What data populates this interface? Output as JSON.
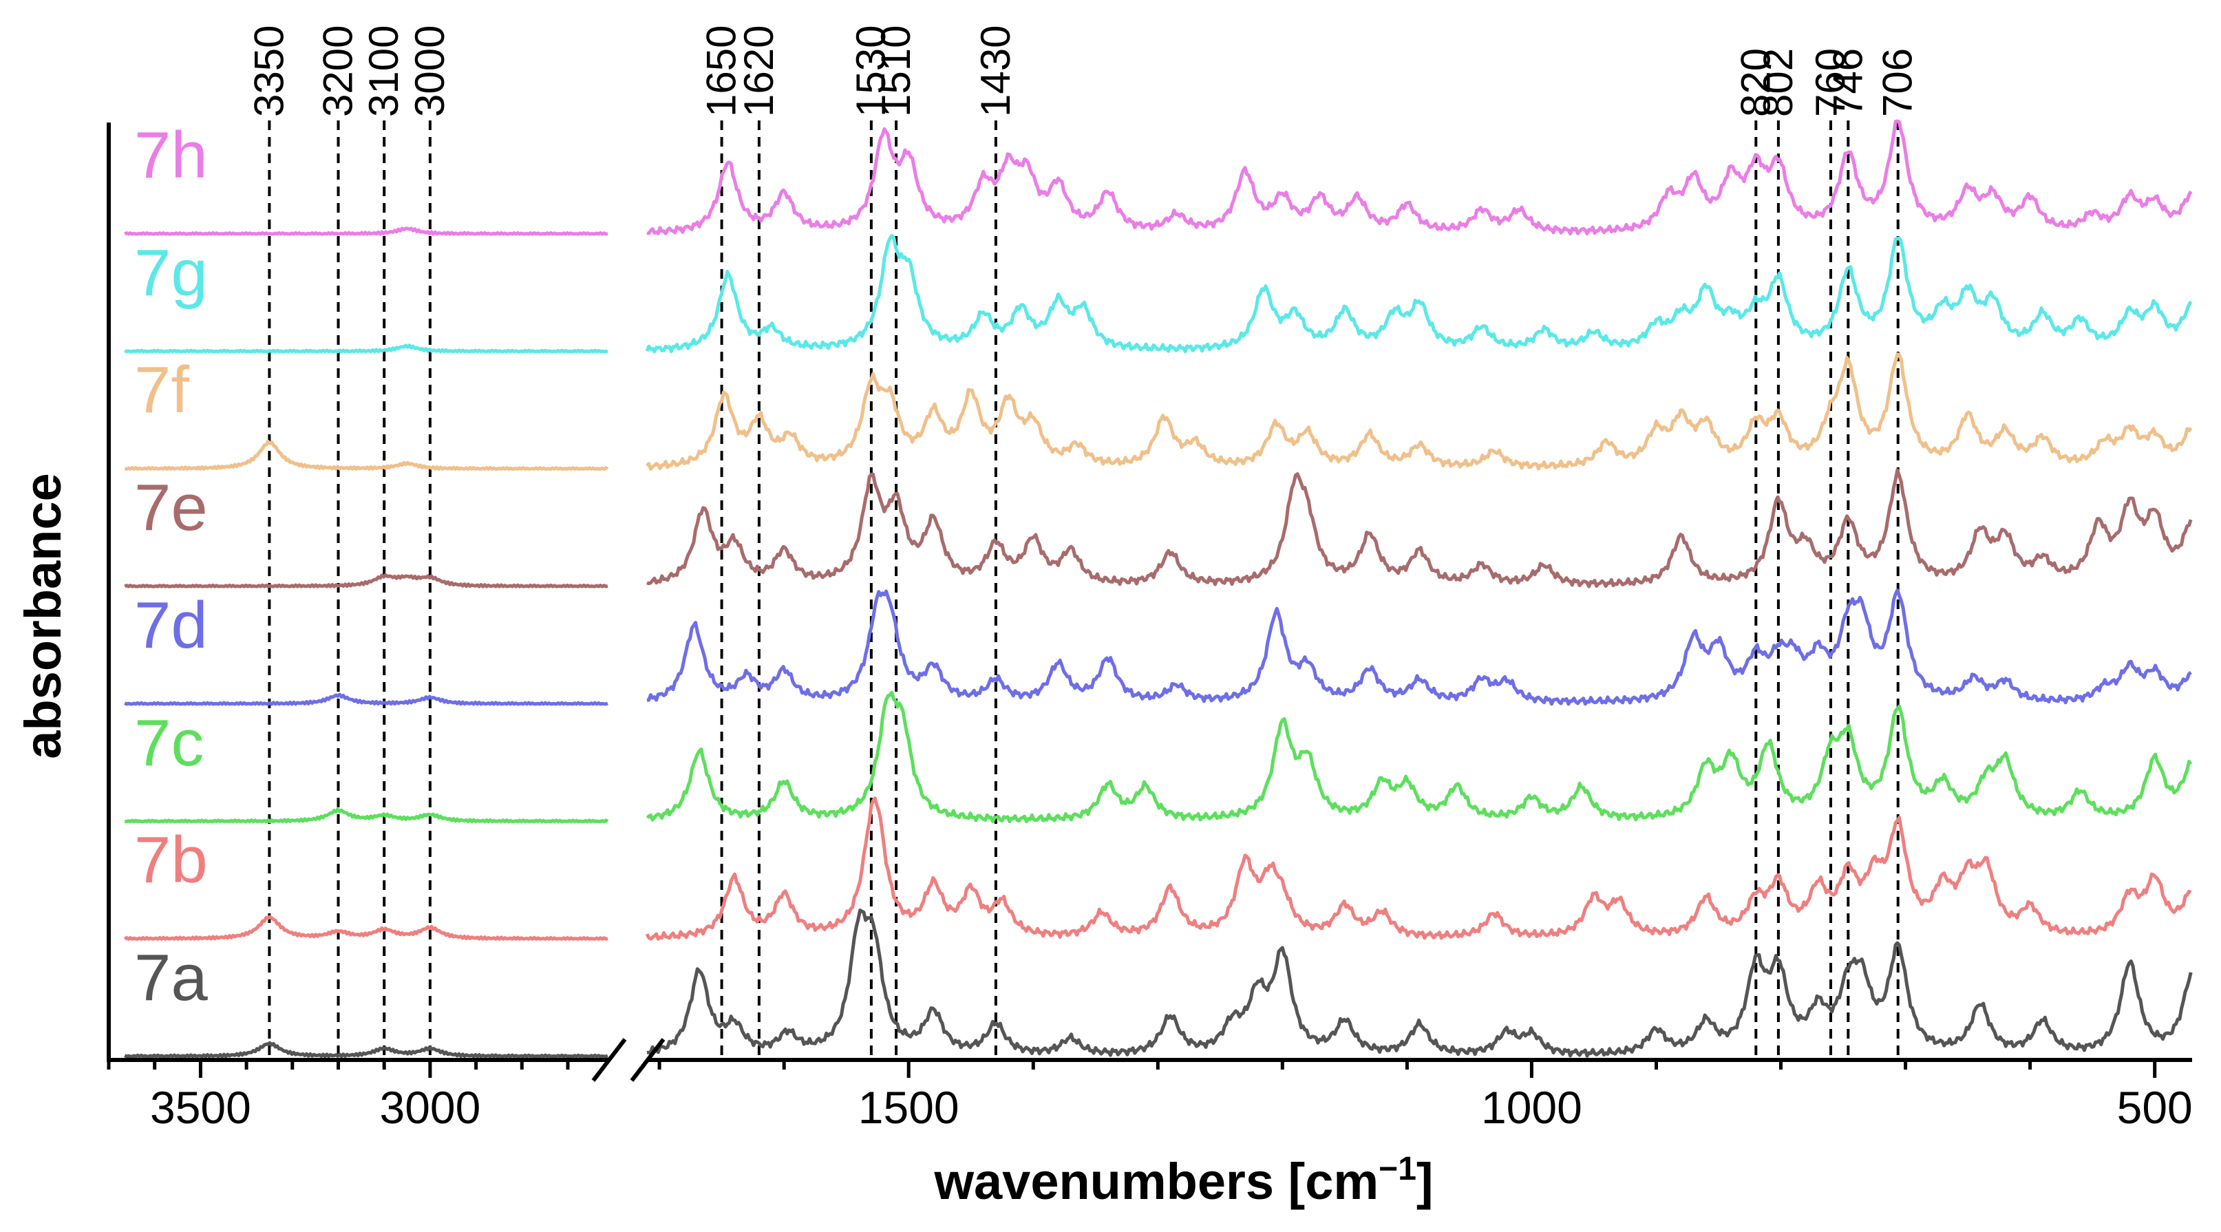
{
  "chart_data": {
    "type": "line",
    "title": "",
    "xlabel": "wavenumbers [cm",
    "xlabel_sup": "−1",
    "xlabel_close": "]",
    "ylabel": "absorbance",
    "x_direction": "descending",
    "axis_break": true,
    "x_segments": [
      {
        "range": [
          3700,
          2610
        ],
        "ticks": [
          3500,
          3000
        ],
        "tick_labels": [
          "3500",
          "3000"
        ]
      },
      {
        "range": [
          1710,
          470
        ],
        "ticks": [
          1500,
          1000,
          500
        ],
        "tick_labels": [
          "1500",
          "1000",
          "500"
        ]
      }
    ],
    "minor_tick_step": 100,
    "y_units": "arbitrary, stacked offset",
    "grid": false,
    "legend": "inline labels at left of each trace",
    "peak_markers": [
      {
        "label": "3350",
        "wavenumber": 3350
      },
      {
        "label": "3200",
        "wavenumber": 3200
      },
      {
        "label": "3100",
        "wavenumber": 3100
      },
      {
        "label": "3000",
        "wavenumber": 3000
      },
      {
        "label": "1650",
        "wavenumber": 1650
      },
      {
        "label": "1620",
        "wavenumber": 1620
      },
      {
        "label": "1530",
        "wavenumber": 1530
      },
      {
        "label": "1510",
        "wavenumber": 1510
      },
      {
        "label": "1430",
        "wavenumber": 1430
      },
      {
        "label": "820",
        "wavenumber": 820
      },
      {
        "label": "802",
        "wavenumber": 802
      },
      {
        "label": "760",
        "wavenumber": 760
      },
      {
        "label": "746",
        "wavenumber": 746
      },
      {
        "label": "706",
        "wavenumber": 706
      }
    ],
    "series": [
      {
        "name": "7a",
        "color": "#555555",
        "peaks": [
          [
            1668,
            0.78
          ],
          [
            1640,
            0.25
          ],
          [
            1597,
            0.18
          ],
          [
            1540,
            1.0
          ],
          [
            1528,
            0.85
          ],
          [
            1480,
            0.38
          ],
          [
            1430,
            0.28
          ],
          [
            1370,
            0.15
          ],
          [
            1290,
            0.35
          ],
          [
            1240,
            0.25
          ],
          [
            1220,
            0.5
          ],
          [
            1200,
            0.9
          ],
          [
            1150,
            0.3
          ],
          [
            1090,
            0.28
          ],
          [
            1020,
            0.2
          ],
          [
            1000,
            0.18
          ],
          [
            900,
            0.22
          ],
          [
            860,
            0.28
          ],
          [
            820,
            0.75
          ],
          [
            802,
            0.7
          ],
          [
            770,
            0.35
          ],
          [
            746,
            0.5
          ],
          [
            735,
            0.55
          ],
          [
            706,
            0.95
          ],
          [
            640,
            0.45
          ],
          [
            590,
            0.3
          ],
          [
            520,
            0.85
          ],
          [
            470,
            0.75
          ]
        ],
        "hf": [
          [
            3350,
            0.12
          ],
          [
            3100,
            0.07
          ],
          [
            3000,
            0.07
          ]
        ]
      },
      {
        "name": "7b",
        "color": "#ef7f7f",
        "peaks": [
          [
            1640,
            0.55
          ],
          [
            1600,
            0.38
          ],
          [
            1530,
            0.62
          ],
          [
            1525,
            0.75
          ],
          [
            1480,
            0.45
          ],
          [
            1450,
            0.4
          ],
          [
            1425,
            0.3
          ],
          [
            1345,
            0.22
          ],
          [
            1290,
            0.45
          ],
          [
            1230,
            0.65
          ],
          [
            1210,
            0.45
          ],
          [
            1200,
            0.25
          ],
          [
            1150,
            0.28
          ],
          [
            1120,
            0.22
          ],
          [
            1030,
            0.22
          ],
          [
            950,
            0.35
          ],
          [
            930,
            0.3
          ],
          [
            860,
            0.35
          ],
          [
            820,
            0.3
          ],
          [
            802,
            0.45
          ],
          [
            770,
            0.4
          ],
          [
            746,
            0.5
          ],
          [
            725,
            0.45
          ],
          [
            706,
            0.95
          ],
          [
            670,
            0.4
          ],
          [
            650,
            0.45
          ],
          [
            635,
            0.55
          ],
          [
            600,
            0.25
          ],
          [
            520,
            0.35
          ],
          [
            500,
            0.5
          ],
          [
            470,
            0.4
          ]
        ],
        "hf": [
          [
            3350,
            0.2
          ],
          [
            3200,
            0.06
          ],
          [
            3100,
            0.08
          ],
          [
            3000,
            0.1
          ]
        ]
      },
      {
        "name": "7c",
        "color": "#5ddf5d",
        "peaks": [
          [
            1668,
            0.65
          ],
          [
            1600,
            0.35
          ],
          [
            1517,
            0.92
          ],
          [
            1505,
            0.7
          ],
          [
            1340,
            0.32
          ],
          [
            1310,
            0.3
          ],
          [
            1200,
            0.85
          ],
          [
            1180,
            0.5
          ],
          [
            1120,
            0.32
          ],
          [
            1100,
            0.3
          ],
          [
            1060,
            0.3
          ],
          [
            1000,
            0.2
          ],
          [
            960,
            0.3
          ],
          [
            860,
            0.45
          ],
          [
            840,
            0.5
          ],
          [
            810,
            0.65
          ],
          [
            760,
            0.5
          ],
          [
            746,
            0.65
          ],
          [
            706,
            1.0
          ],
          [
            670,
            0.3
          ],
          [
            635,
            0.3
          ],
          [
            620,
            0.5
          ],
          [
            560,
            0.25
          ],
          [
            500,
            0.55
          ],
          [
            470,
            0.5
          ]
        ],
        "hf": [
          [
            3200,
            0.1
          ],
          [
            3100,
            0.05
          ],
          [
            3000,
            0.06
          ]
        ]
      },
      {
        "name": "7d",
        "color": "#6e6ee8",
        "peaks": [
          [
            1672,
            0.72
          ],
          [
            1630,
            0.22
          ],
          [
            1600,
            0.28
          ],
          [
            1525,
            0.7
          ],
          [
            1515,
            0.62
          ],
          [
            1480,
            0.3
          ],
          [
            1430,
            0.2
          ],
          [
            1380,
            0.35
          ],
          [
            1340,
            0.4
          ],
          [
            1285,
            0.15
          ],
          [
            1205,
            0.82
          ],
          [
            1180,
            0.3
          ],
          [
            1130,
            0.3
          ],
          [
            1090,
            0.2
          ],
          [
            1040,
            0.2
          ],
          [
            1020,
            0.18
          ],
          [
            870,
            0.55
          ],
          [
            850,
            0.45
          ],
          [
            820,
            0.35
          ],
          [
            802,
            0.3
          ],
          [
            790,
            0.3
          ],
          [
            770,
            0.35
          ],
          [
            746,
            0.55
          ],
          [
            735,
            0.6
          ],
          [
            706,
            0.95
          ],
          [
            645,
            0.2
          ],
          [
            620,
            0.18
          ],
          [
            540,
            0.12
          ],
          [
            520,
            0.3
          ],
          [
            500,
            0.25
          ],
          [
            470,
            0.25
          ]
        ],
        "hf": [
          [
            3200,
            0.08
          ],
          [
            3000,
            0.06
          ]
        ]
      },
      {
        "name": "7e",
        "color": "#a86b6b",
        "peaks": [
          [
            1665,
            0.68
          ],
          [
            1640,
            0.35
          ],
          [
            1600,
            0.3
          ],
          [
            1530,
            0.9
          ],
          [
            1510,
            0.65
          ],
          [
            1480,
            0.55
          ],
          [
            1430,
            0.35
          ],
          [
            1400,
            0.4
          ],
          [
            1370,
            0.3
          ],
          [
            1290,
            0.3
          ],
          [
            1190,
            0.8
          ],
          [
            1180,
            0.45
          ],
          [
            1130,
            0.45
          ],
          [
            1090,
            0.3
          ],
          [
            1040,
            0.18
          ],
          [
            990,
            0.18
          ],
          [
            880,
            0.45
          ],
          [
            802,
            0.75
          ],
          [
            780,
            0.3
          ],
          [
            746,
            0.55
          ],
          [
            706,
            1.0
          ],
          [
            640,
            0.45
          ],
          [
            620,
            0.4
          ],
          [
            590,
            0.2
          ],
          [
            545,
            0.5
          ],
          [
            520,
            0.65
          ],
          [
            500,
            0.55
          ],
          [
            470,
            0.55
          ]
        ],
        "hf": [
          [
            3100,
            0.08
          ],
          [
            3050,
            0.06
          ],
          [
            3000,
            0.07
          ]
        ]
      },
      {
        "name": "7f",
        "color": "#f0c08a",
        "peaks": [
          [
            1648,
            0.65
          ],
          [
            1620,
            0.4
          ],
          [
            1595,
            0.25
          ],
          [
            1530,
            0.68
          ],
          [
            1515,
            0.5
          ],
          [
            1480,
            0.45
          ],
          [
            1450,
            0.62
          ],
          [
            1420,
            0.55
          ],
          [
            1400,
            0.35
          ],
          [
            1365,
            0.18
          ],
          [
            1295,
            0.45
          ],
          [
            1270,
            0.2
          ],
          [
            1205,
            0.38
          ],
          [
            1180,
            0.3
          ],
          [
            1130,
            0.3
          ],
          [
            1090,
            0.2
          ],
          [
            1030,
            0.15
          ],
          [
            940,
            0.22
          ],
          [
            900,
            0.3
          ],
          [
            880,
            0.4
          ],
          [
            860,
            0.35
          ],
          [
            820,
            0.35
          ],
          [
            802,
            0.4
          ],
          [
            760,
            0.3
          ],
          [
            746,
            0.85
          ],
          [
            706,
            1.0
          ],
          [
            650,
            0.45
          ],
          [
            620,
            0.3
          ],
          [
            590,
            0.25
          ],
          [
            540,
            0.2
          ],
          [
            520,
            0.3
          ],
          [
            500,
            0.25
          ],
          [
            470,
            0.35
          ]
        ],
        "hf": [
          [
            3350,
            0.25
          ],
          [
            3050,
            0.05
          ]
        ]
      },
      {
        "name": "7g",
        "color": "#5ae8e8",
        "peaks": [
          [
            1645,
            0.7
          ],
          [
            1610,
            0.18
          ],
          [
            1515,
            0.9
          ],
          [
            1500,
            0.6
          ],
          [
            1440,
            0.3
          ],
          [
            1410,
            0.35
          ],
          [
            1380,
            0.4
          ],
          [
            1360,
            0.35
          ],
          [
            1215,
            0.55
          ],
          [
            1190,
            0.3
          ],
          [
            1150,
            0.35
          ],
          [
            1110,
            0.3
          ],
          [
            1090,
            0.4
          ],
          [
            1040,
            0.2
          ],
          [
            990,
            0.18
          ],
          [
            950,
            0.15
          ],
          [
            900,
            0.2
          ],
          [
            880,
            0.25
          ],
          [
            860,
            0.5
          ],
          [
            840,
            0.2
          ],
          [
            820,
            0.28
          ],
          [
            802,
            0.6
          ],
          [
            746,
            0.7
          ],
          [
            706,
            1.0
          ],
          [
            670,
            0.3
          ],
          [
            650,
            0.45
          ],
          [
            630,
            0.4
          ],
          [
            590,
            0.3
          ],
          [
            560,
            0.25
          ],
          [
            520,
            0.3
          ],
          [
            500,
            0.35
          ],
          [
            470,
            0.4
          ]
        ],
        "hf": [
          [
            3050,
            0.05
          ]
        ]
      },
      {
        "name": "7h",
        "color": "#ea7de6",
        "peaks": [
          [
            1645,
            0.65
          ],
          [
            1600,
            0.35
          ],
          [
            1520,
            0.85
          ],
          [
            1500,
            0.6
          ],
          [
            1440,
            0.4
          ],
          [
            1420,
            0.5
          ],
          [
            1405,
            0.45
          ],
          [
            1380,
            0.4
          ],
          [
            1340,
            0.35
          ],
          [
            1285,
            0.15
          ],
          [
            1230,
            0.55
          ],
          [
            1200,
            0.3
          ],
          [
            1170,
            0.3
          ],
          [
            1140,
            0.3
          ],
          [
            1100,
            0.25
          ],
          [
            1040,
            0.2
          ],
          [
            1010,
            0.2
          ],
          [
            890,
            0.3
          ],
          [
            870,
            0.45
          ],
          [
            840,
            0.45
          ],
          [
            820,
            0.5
          ],
          [
            802,
            0.55
          ],
          [
            746,
            0.7
          ],
          [
            706,
            1.0
          ],
          [
            650,
            0.35
          ],
          [
            630,
            0.3
          ],
          [
            600,
            0.3
          ],
          [
            550,
            0.15
          ],
          [
            520,
            0.3
          ],
          [
            500,
            0.25
          ],
          [
            470,
            0.35
          ]
        ],
        "hf": [
          [
            3050,
            0.05
          ]
        ]
      }
    ]
  }
}
